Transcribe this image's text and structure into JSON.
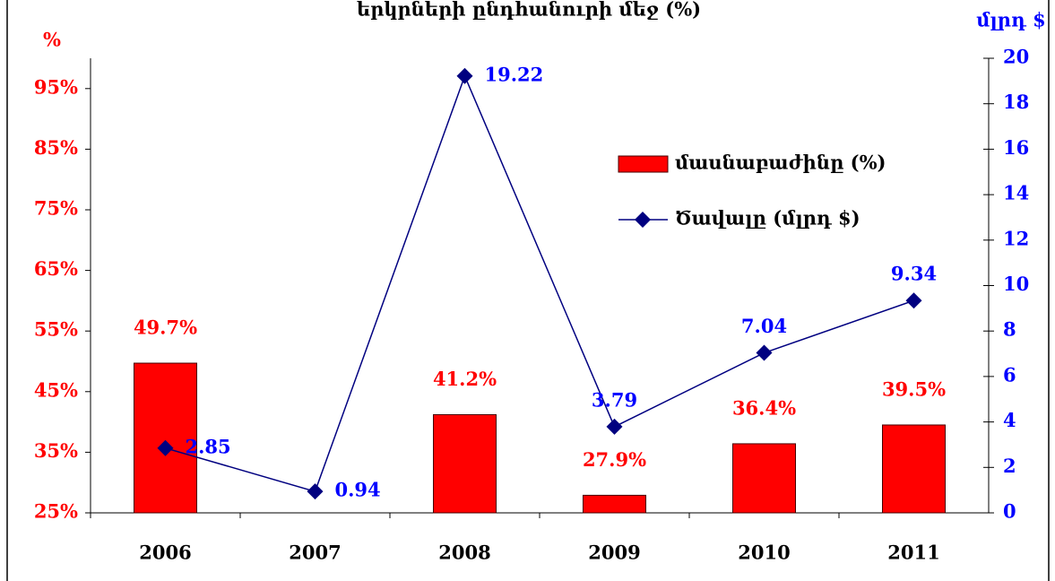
{
  "chart_data": {
    "type": "combo",
    "title": "երկրների ընդհանուրի մեջ (%)",
    "ylabel": "%",
    "y2label": "մլրդ $",
    "categories": [
      "2006",
      "2007",
      "2008",
      "2009",
      "2010",
      "2011"
    ],
    "series": [
      {
        "name": "մասնաբաժինը (%)",
        "type": "bar",
        "color": "#ff0000",
        "values": [
          49.7,
          null,
          41.2,
          27.9,
          36.4,
          39.5
        ],
        "value_labels": [
          "49.7%",
          null,
          "41.2%",
          "27.9%",
          "36.4%",
          "39.5%"
        ]
      },
      {
        "name": "Ծավալը (մլրդ $)",
        "type": "line",
        "axis": "y2",
        "color": "#000080",
        "values": [
          2.85,
          0.94,
          19.22,
          3.79,
          7.04,
          9.34
        ]
      }
    ],
    "ylim": [
      25,
      100
    ],
    "yticks": [
      {
        "value": 25,
        "label": "25%"
      },
      {
        "value": 35,
        "label": "35%"
      },
      {
        "value": 45,
        "label": "45%"
      },
      {
        "value": 55,
        "label": "55%"
      },
      {
        "value": 65,
        "label": "65%"
      },
      {
        "value": 75,
        "label": "75%"
      },
      {
        "value": 85,
        "label": "85%"
      },
      {
        "value": 95,
        "label": "95%"
      }
    ],
    "y2lim": [
      0,
      20
    ],
    "y2ticks": [
      0,
      2,
      4,
      6,
      8,
      10,
      12,
      14,
      16,
      18,
      20
    ],
    "grid": false,
    "legend": "right"
  }
}
